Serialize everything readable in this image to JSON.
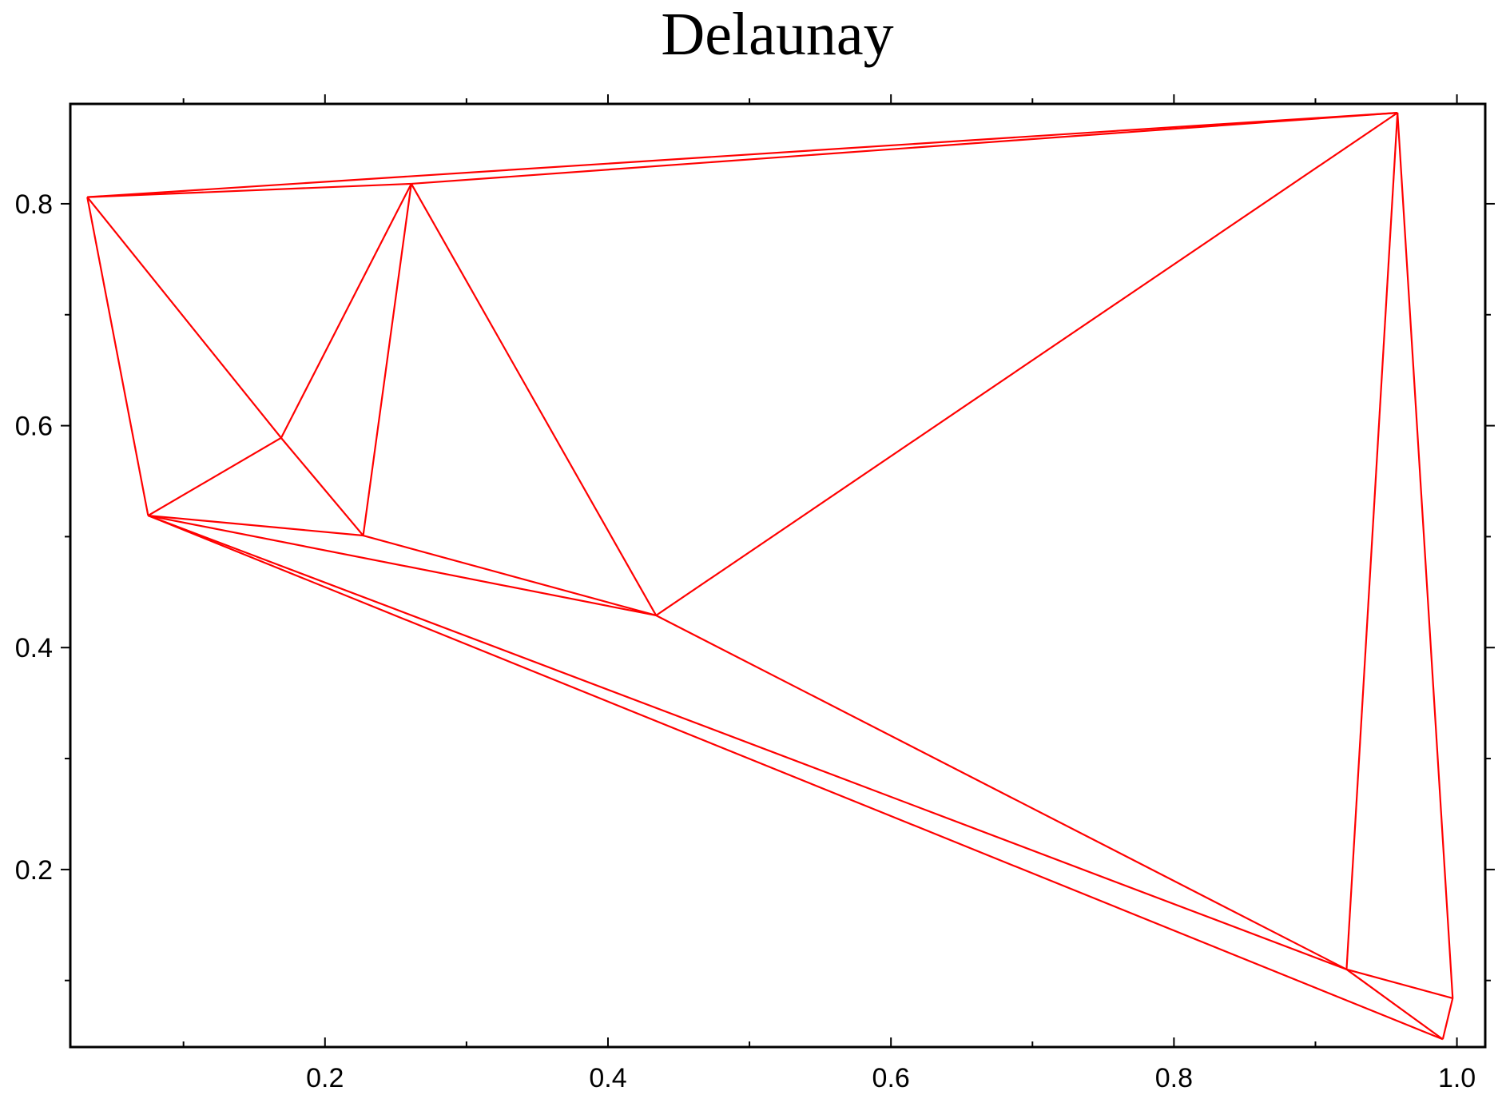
{
  "chart_data": {
    "type": "network",
    "title": "Delaunay",
    "xlabel": "",
    "ylabel": "",
    "xlim": [
      0.02,
      1.02
    ],
    "ylim": [
      0.04,
      0.89
    ],
    "x_major_ticks": [
      0.2,
      0.4,
      0.6,
      0.8,
      1.0
    ],
    "x_tick_labels": [
      "0.2",
      "0.4",
      "0.6",
      "0.8",
      "1.0"
    ],
    "x_minor_ticks": [
      0.1,
      0.3,
      0.5,
      0.7,
      0.9
    ],
    "y_major_ticks": [
      0.2,
      0.4,
      0.6,
      0.8
    ],
    "y_tick_labels": [
      "0.2",
      "0.4",
      "0.6",
      "0.8"
    ],
    "y_minor_ticks": [
      0.1,
      0.3,
      0.5,
      0.7
    ],
    "grid": false,
    "edge_color": "#ff0000",
    "points": [
      {
        "id": "A",
        "x": 0.032,
        "y": 0.806
      },
      {
        "id": "B",
        "x": 0.261,
        "y": 0.818
      },
      {
        "id": "C",
        "x": 0.958,
        "y": 0.882
      },
      {
        "id": "D",
        "x": 0.169,
        "y": 0.589
      },
      {
        "id": "E",
        "x": 0.075,
        "y": 0.519
      },
      {
        "id": "F",
        "x": 0.227,
        "y": 0.501
      },
      {
        "id": "G",
        "x": 0.434,
        "y": 0.429
      },
      {
        "id": "H",
        "x": 0.922,
        "y": 0.11
      },
      {
        "id": "I",
        "x": 0.997,
        "y": 0.084
      },
      {
        "id": "J",
        "x": 0.99,
        "y": 0.047
      }
    ],
    "edges": [
      [
        "A",
        "B"
      ],
      [
        "A",
        "C"
      ],
      [
        "B",
        "C"
      ],
      [
        "A",
        "D"
      ],
      [
        "A",
        "E"
      ],
      [
        "B",
        "D"
      ],
      [
        "B",
        "F"
      ],
      [
        "B",
        "G"
      ],
      [
        "C",
        "G"
      ],
      [
        "C",
        "H"
      ],
      [
        "C",
        "I"
      ],
      [
        "D",
        "E"
      ],
      [
        "D",
        "F"
      ],
      [
        "E",
        "F"
      ],
      [
        "E",
        "G"
      ],
      [
        "E",
        "H"
      ],
      [
        "E",
        "J"
      ],
      [
        "F",
        "G"
      ],
      [
        "G",
        "H"
      ],
      [
        "H",
        "I"
      ],
      [
        "H",
        "J"
      ],
      [
        "I",
        "J"
      ]
    ]
  }
}
